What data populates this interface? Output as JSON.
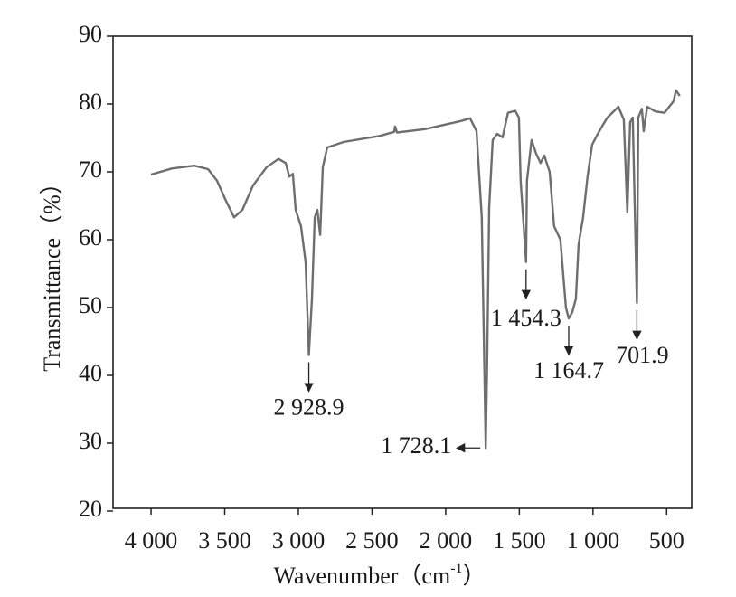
{
  "chart_data": {
    "type": "line",
    "ylabel": "Transmittance（%）",
    "xlabel_parts": [
      "Wavenumber（cm",
      "-1",
      "）"
    ],
    "xlim": [
      4258,
      330
    ],
    "ylim": [
      20,
      90
    ],
    "xticks": [
      {
        "value": 4000,
        "label": "4 000"
      },
      {
        "value": 3500,
        "label": "3 500"
      },
      {
        "value": 3000,
        "label": "3 000"
      },
      {
        "value": 2500,
        "label": "2 500"
      },
      {
        "value": 2000,
        "label": "2 000"
      },
      {
        "value": 1500,
        "label": "1 500"
      },
      {
        "value": 1000,
        "label": "1 000"
      },
      500
    ],
    "yticks": [
      20,
      30,
      40,
      50,
      60,
      70,
      80,
      90
    ],
    "series": [
      {
        "color": "#6e6e6e",
        "x": [
          4000,
          3859,
          3706,
          3613,
          3552,
          3491,
          3436,
          3380,
          3307,
          3215,
          3135,
          3086,
          3061,
          3037,
          3018,
          2982,
          2951,
          2928.9,
          2908,
          2889,
          2871,
          2852,
          2834,
          2804,
          2693,
          2448,
          2350,
          2344,
          2330,
          2141,
          1896,
          1834,
          1791,
          1755,
          1728.1,
          1718,
          1705,
          1681,
          1650,
          1614,
          1577,
          1528,
          1503,
          1491,
          1454.3,
          1448,
          1417,
          1386,
          1356,
          1331,
          1294,
          1264,
          1221,
          1184,
          1164.7,
          1141,
          1116,
          1098,
          1067,
          1037,
          1006,
          975,
          939,
          902,
          828,
          791,
          767,
          748,
          730,
          701.9,
          693,
          668,
          656,
          632,
          577,
          515,
          454,
          436,
          411
        ],
        "values": [
          69.6,
          70.5,
          70.9,
          70.4,
          68.7,
          65.7,
          63.3,
          64.4,
          68,
          70.7,
          71.9,
          71.3,
          69.3,
          69.7,
          64.4,
          62,
          56.7,
          43,
          51.3,
          63.3,
          64.4,
          60.7,
          70.7,
          73.6,
          74.4,
          75.3,
          75.9,
          76.7,
          75.8,
          76.3,
          77.5,
          77.9,
          76,
          63.3,
          29.3,
          42,
          64.7,
          74.7,
          75.6,
          75.1,
          78.7,
          79,
          78,
          68.7,
          56.7,
          68.7,
          74.7,
          72.7,
          71.3,
          72.4,
          70,
          62,
          60,
          50,
          48.4,
          49.3,
          51.3,
          59.3,
          63.3,
          69.3,
          74,
          75.3,
          76.7,
          78,
          79.6,
          77.7,
          64,
          77.3,
          78,
          50.7,
          78,
          79.3,
          76,
          79.6,
          78.9,
          78.7,
          80.4,
          82,
          81.2
        ]
      }
    ],
    "annotations": [
      {
        "text": "2 928.9",
        "x": 2928.9,
        "y": 43
      },
      {
        "text": "1 728.1",
        "x": 1728.1,
        "y": 29.3
      },
      {
        "text": "1 454.3",
        "x": 1454.3,
        "y": 56.7
      },
      {
        "text": "1 164.7",
        "x": 1164.7,
        "y": 48.4
      },
      {
        "text": "701.9",
        "x": 701.9,
        "y": 50.7
      }
    ]
  }
}
